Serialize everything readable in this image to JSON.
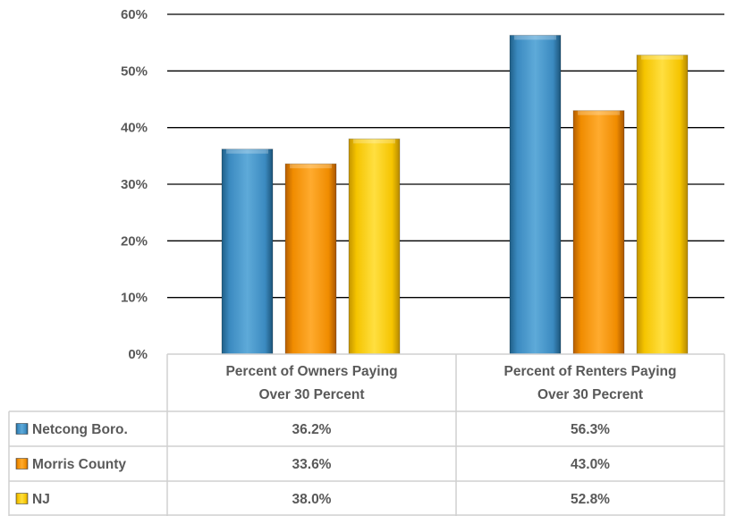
{
  "chart_data": {
    "type": "bar",
    "categories": [
      [
        "Percent of Owners Paying",
        "Over 30 Percent"
      ],
      [
        "Percent of Renters Paying",
        "Over 30 Pecrent"
      ]
    ],
    "series": [
      {
        "name": "Netcong Boro.",
        "values": [
          36.2,
          56.3
        ],
        "labels": [
          "36.2%",
          "56.3%"
        ],
        "color": "#3a8cc0"
      },
      {
        "name": "Morris County",
        "values": [
          33.6,
          43.0
        ],
        "labels": [
          "33.6%",
          "43.0%"
        ],
        "color": "#f08c00"
      },
      {
        "name": "NJ",
        "values": [
          38.0,
          52.8
        ],
        "labels": [
          "38.0%",
          "52.8%"
        ],
        "color": "#f5c400"
      }
    ],
    "y_ticks": [
      "0%",
      "10%",
      "20%",
      "30%",
      "40%",
      "50%",
      "60%"
    ],
    "ylim": [
      0,
      60
    ],
    "grid": true,
    "legend": "data-table"
  }
}
